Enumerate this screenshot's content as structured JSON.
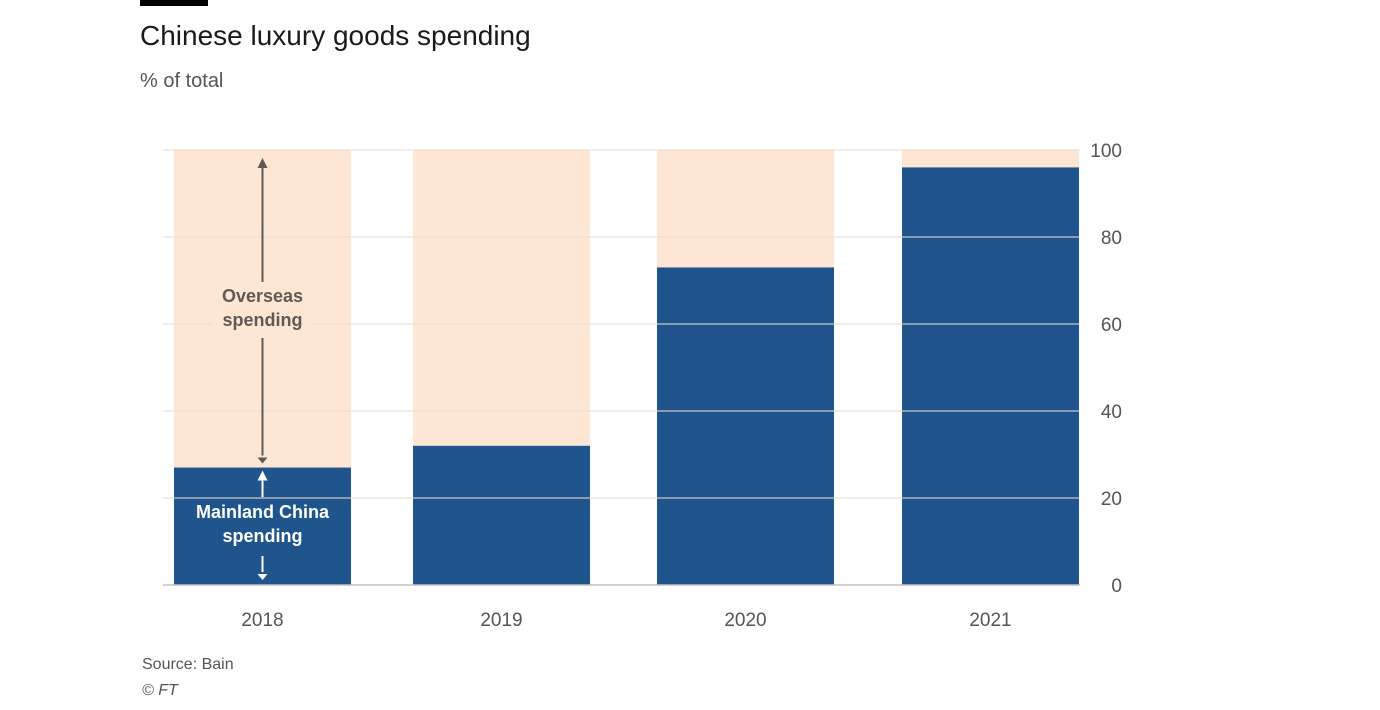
{
  "title": "Chinese luxury goods spending",
  "subtitle": "% of total",
  "source": "Source: Bain",
  "credit": "© FT",
  "colors": {
    "mainland": "#1f558c",
    "overseas": "#fde6d4",
    "grid": "#e6ddd4",
    "text": "#555555"
  },
  "chart_data": {
    "type": "bar",
    "stacked": true,
    "title": "Chinese luxury goods spending",
    "ylabel": "% of total",
    "categories": [
      "2018",
      "2019",
      "2020",
      "2021"
    ],
    "series": [
      {
        "name": "Mainland China spending",
        "values": [
          27,
          32,
          73,
          96
        ]
      },
      {
        "name": "Overseas spending",
        "values": [
          73,
          68,
          27,
          4
        ]
      }
    ],
    "ylim": [
      0,
      100
    ],
    "yticks": [
      0,
      20,
      40,
      60,
      80,
      100
    ],
    "yaxis_position": "right",
    "grid": true,
    "annotations": [
      {
        "text_lines": [
          "Overseas",
          "spending"
        ],
        "category": "2018",
        "series": "Overseas spending"
      },
      {
        "text_lines": [
          "Mainland China",
          "spending"
        ],
        "category": "2018",
        "series": "Mainland China spending"
      }
    ]
  }
}
